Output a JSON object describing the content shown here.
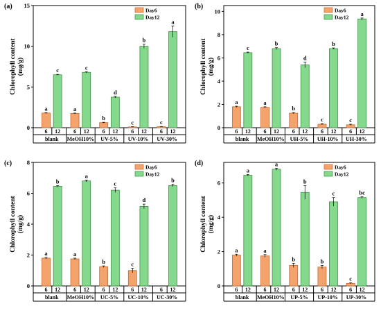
{
  "colors": {
    "day6_fill": "#F4A36C",
    "day6_stroke": "#C26A2C",
    "day12_fill": "#84D98C",
    "day12_stroke": "#3E8E43"
  },
  "chart_data": [
    {
      "panel": "(a)",
      "type": "bar",
      "ylabel": "Chlorophyll content",
      "yunit": "(mg/g)",
      "ylim": [
        0,
        15
      ],
      "yticks": [
        "0",
        "5",
        "10",
        "15"
      ],
      "categories": [
        "blank",
        "MeOH10%",
        "UV-5%",
        "UV-10%",
        "UV-30%"
      ],
      "day_labels": [
        "6",
        "12"
      ],
      "legend": {
        "position": "top-right",
        "entries": [
          "Day6",
          "Day12"
        ]
      },
      "series": [
        {
          "name": "Day6",
          "values": [
            1.8,
            1.75,
            0.62,
            0.1,
            0.12
          ],
          "errors": [
            0.05,
            0.05,
            0.05,
            0.03,
            0.03
          ],
          "letters": [
            "a",
            "a",
            "b",
            "c",
            "c"
          ]
        },
        {
          "name": "Day12",
          "values": [
            6.5,
            6.8,
            3.75,
            10.0,
            11.8
          ],
          "errors": [
            0.05,
            0.08,
            0.1,
            0.25,
            0.7
          ],
          "letters": [
            "c",
            "c",
            "d",
            "b",
            "a"
          ]
        }
      ]
    },
    {
      "panel": "(b)",
      "type": "bar",
      "ylabel": "Chlorophyll content",
      "yunit": "(mg/g)",
      "ylim": [
        0,
        10.5
      ],
      "yticks": [
        "0",
        "2",
        "4",
        "6",
        "8",
        "10"
      ],
      "categories": [
        "blank",
        "MeOH10%",
        "UH-5%",
        "UH-10%",
        "UH-30%"
      ],
      "day_labels": [
        "6",
        "12"
      ],
      "legend": {
        "position": "top-right",
        "entries": [
          "Day6",
          "Day12"
        ]
      },
      "series": [
        {
          "name": "Day6",
          "values": [
            1.8,
            1.75,
            1.25,
            0.3,
            0.25
          ],
          "errors": [
            0.05,
            0.05,
            0.05,
            0.05,
            0.05
          ],
          "letters": [
            "a",
            "a",
            "b",
            "c",
            "c"
          ]
        },
        {
          "name": "Day12",
          "values": [
            6.45,
            6.8,
            5.4,
            6.8,
            9.35
          ],
          "errors": [
            0.05,
            0.08,
            0.25,
            0.06,
            0.08
          ],
          "letters": [
            "c",
            "b",
            "d",
            "b",
            "a"
          ]
        }
      ]
    },
    {
      "panel": "(c)",
      "type": "bar",
      "ylabel": "Chlorophyll content",
      "yunit": "(mg/g)",
      "ylim": [
        0,
        8
      ],
      "yticks": [
        "0",
        "2",
        "4",
        "6",
        "8"
      ],
      "categories": [
        "blank",
        "MeOH10%",
        "UC-5%",
        "UC-10%",
        "UC-30%"
      ],
      "day_labels": [
        "6",
        "12"
      ],
      "legend": {
        "position": "top-right",
        "entries": [
          "Day6",
          "Day12"
        ]
      },
      "series": [
        {
          "name": "Day6",
          "values": [
            1.8,
            1.75,
            1.25,
            1.0,
            null
          ],
          "errors": [
            0.05,
            0.05,
            0.05,
            0.15,
            0
          ],
          "letters": [
            "a",
            "a",
            "b",
            "c",
            ""
          ]
        },
        {
          "name": "Day12",
          "values": [
            6.45,
            6.8,
            6.2,
            5.15,
            6.5
          ],
          "errors": [
            0.05,
            0.06,
            0.15,
            0.15,
            0.08
          ],
          "letters": [
            "b",
            "a",
            "c",
            "d",
            "b"
          ]
        }
      ]
    },
    {
      "panel": "(d)",
      "type": "bar",
      "ylabel": "Chlorophyll content",
      "yunit": "(mg/g)",
      "ylim": [
        0,
        7.2
      ],
      "yticks": [
        "0",
        "2",
        "4",
        "6"
      ],
      "categories": [
        "blank",
        "MeOH10%",
        "UP-5%",
        "UP-10%",
        "UP-30%"
      ],
      "day_labels": [
        "6",
        "12"
      ],
      "legend": {
        "position": "top-right",
        "entries": [
          "Day6",
          "Day12"
        ]
      },
      "series": [
        {
          "name": "Day6",
          "values": [
            1.8,
            1.75,
            1.2,
            1.1,
            0.15
          ],
          "errors": [
            0.05,
            0.08,
            0.12,
            0.1,
            0.03
          ],
          "letters": [
            "a",
            "a",
            "b",
            "b",
            "c"
          ]
        },
        {
          "name": "Day12",
          "values": [
            6.45,
            6.8,
            5.45,
            4.9,
            5.15
          ],
          "errors": [
            0.05,
            0.06,
            0.4,
            0.25,
            0.05
          ],
          "letters": [
            "a",
            "a",
            "b",
            "c",
            "bc"
          ]
        }
      ]
    }
  ]
}
